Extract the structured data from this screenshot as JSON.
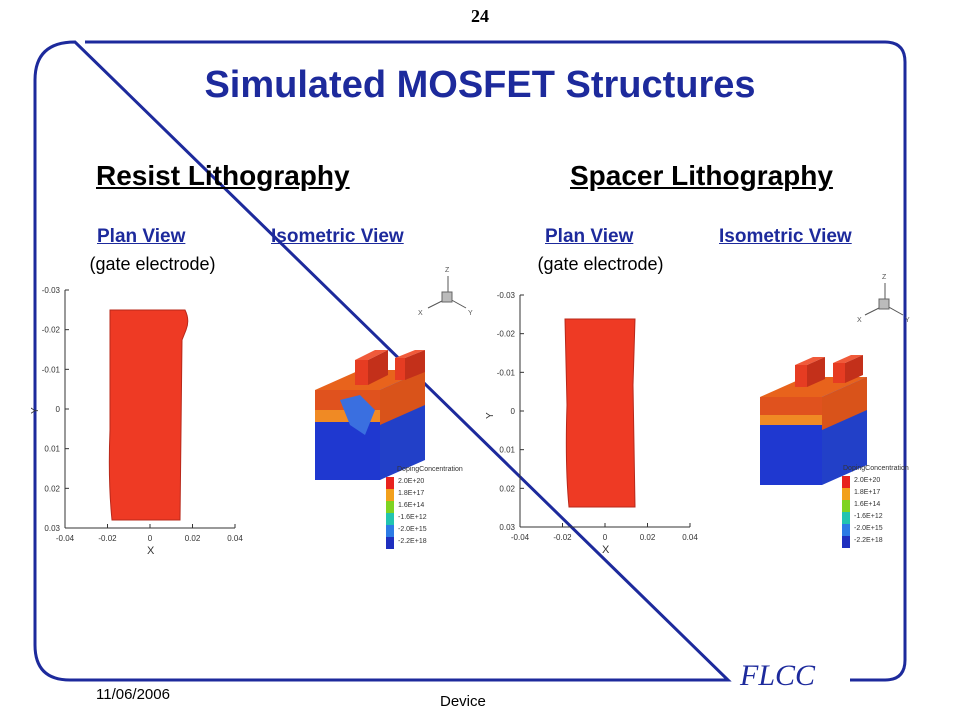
{
  "page_number": "24",
  "title": "Simulated MOSFET Structures",
  "sections": [
    {
      "heading": "Resist Lithography",
      "plan_label": "Plan View",
      "plan_note": "(gate electrode)",
      "iso_label": "Isometric View"
    },
    {
      "heading": "Spacer Lithography",
      "plan_label": "Plan View",
      "plan_note": "(gate electrode)",
      "iso_label": "Isometric View"
    }
  ],
  "plot": {
    "x_ticks": [
      "-0.04",
      "-0.02",
      "0",
      "0.02",
      "0.04"
    ],
    "y_ticks": [
      "-0.03",
      "-0.02",
      "-0.01",
      "0",
      "0.01",
      "0.02",
      "0.03"
    ],
    "x_label": "X",
    "y_label": "Y"
  },
  "axes_triad": {
    "z": "Z",
    "x": "X",
    "y": "Y"
  },
  "legend": {
    "title": "DopingConcentration",
    "entries": [
      "2.0E+20",
      "1.8E+17",
      "1.6E+14",
      "-1.6E+12",
      "-2.0E+15",
      "-2.2E+18"
    ],
    "colors": [
      "#e8231e",
      "#f2a01c",
      "#7ed321",
      "#21c4b0",
      "#2c7be5",
      "#1f2fbf"
    ]
  },
  "footer": {
    "date": "11/06/2006",
    "center": "Device",
    "logo": "FLCC"
  },
  "colors": {
    "title": "#1d2a9c",
    "frame": "#1d2a9c",
    "gate": "#ee3a24"
  }
}
